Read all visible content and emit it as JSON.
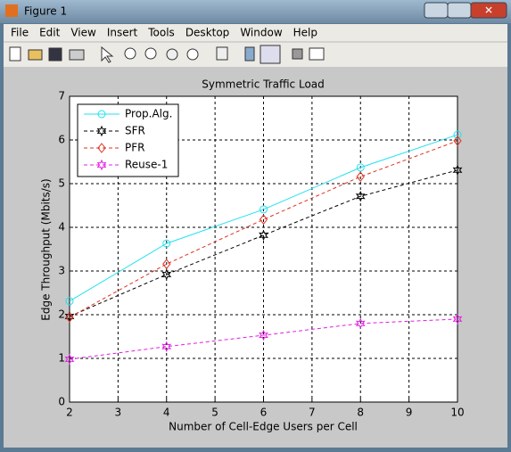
{
  "window": {
    "title": "Figure 1",
    "menu": [
      "File",
      "Edit",
      "View",
      "Insert",
      "Tools",
      "Desktop",
      "Window",
      "Help"
    ]
  },
  "chart_data": {
    "type": "line",
    "title": "Symmetric Traffic Load",
    "x_label": "Number of Cell-Edge Users per Cell",
    "y_label": "Edge Throughput (Mbits/s)",
    "x": [
      2,
      4,
      6,
      8,
      10
    ],
    "series": [
      {
        "name": "Prop.Alg.",
        "color": "#22e0f0",
        "marker": "circle",
        "dash": "solid",
        "values": [
          2.31,
          3.63,
          4.41,
          5.37,
          6.12
        ]
      },
      {
        "name": "SFR",
        "color": "#000000",
        "marker": "hexagram",
        "dash": "dashed",
        "values": [
          1.96,
          2.92,
          3.82,
          4.71,
          5.31
        ]
      },
      {
        "name": "PFR",
        "color": "#e03020",
        "marker": "diamond",
        "dash": "dashed",
        "values": [
          1.94,
          3.16,
          4.18,
          5.16,
          5.98
        ]
      },
      {
        "name": "Reuse-1",
        "color": "#e020e0",
        "marker": "hexagram",
        "dash": "dashed",
        "values": [
          0.98,
          1.27,
          1.53,
          1.8,
          1.9
        ]
      }
    ],
    "xlim": [
      2,
      10
    ],
    "xticks": [
      2,
      3,
      4,
      5,
      6,
      7,
      8,
      9,
      10
    ],
    "ylim": [
      0,
      7
    ],
    "yticks": [
      0,
      1,
      2,
      3,
      4,
      5,
      6,
      7
    ],
    "grid": true,
    "legend": "upper-left"
  }
}
